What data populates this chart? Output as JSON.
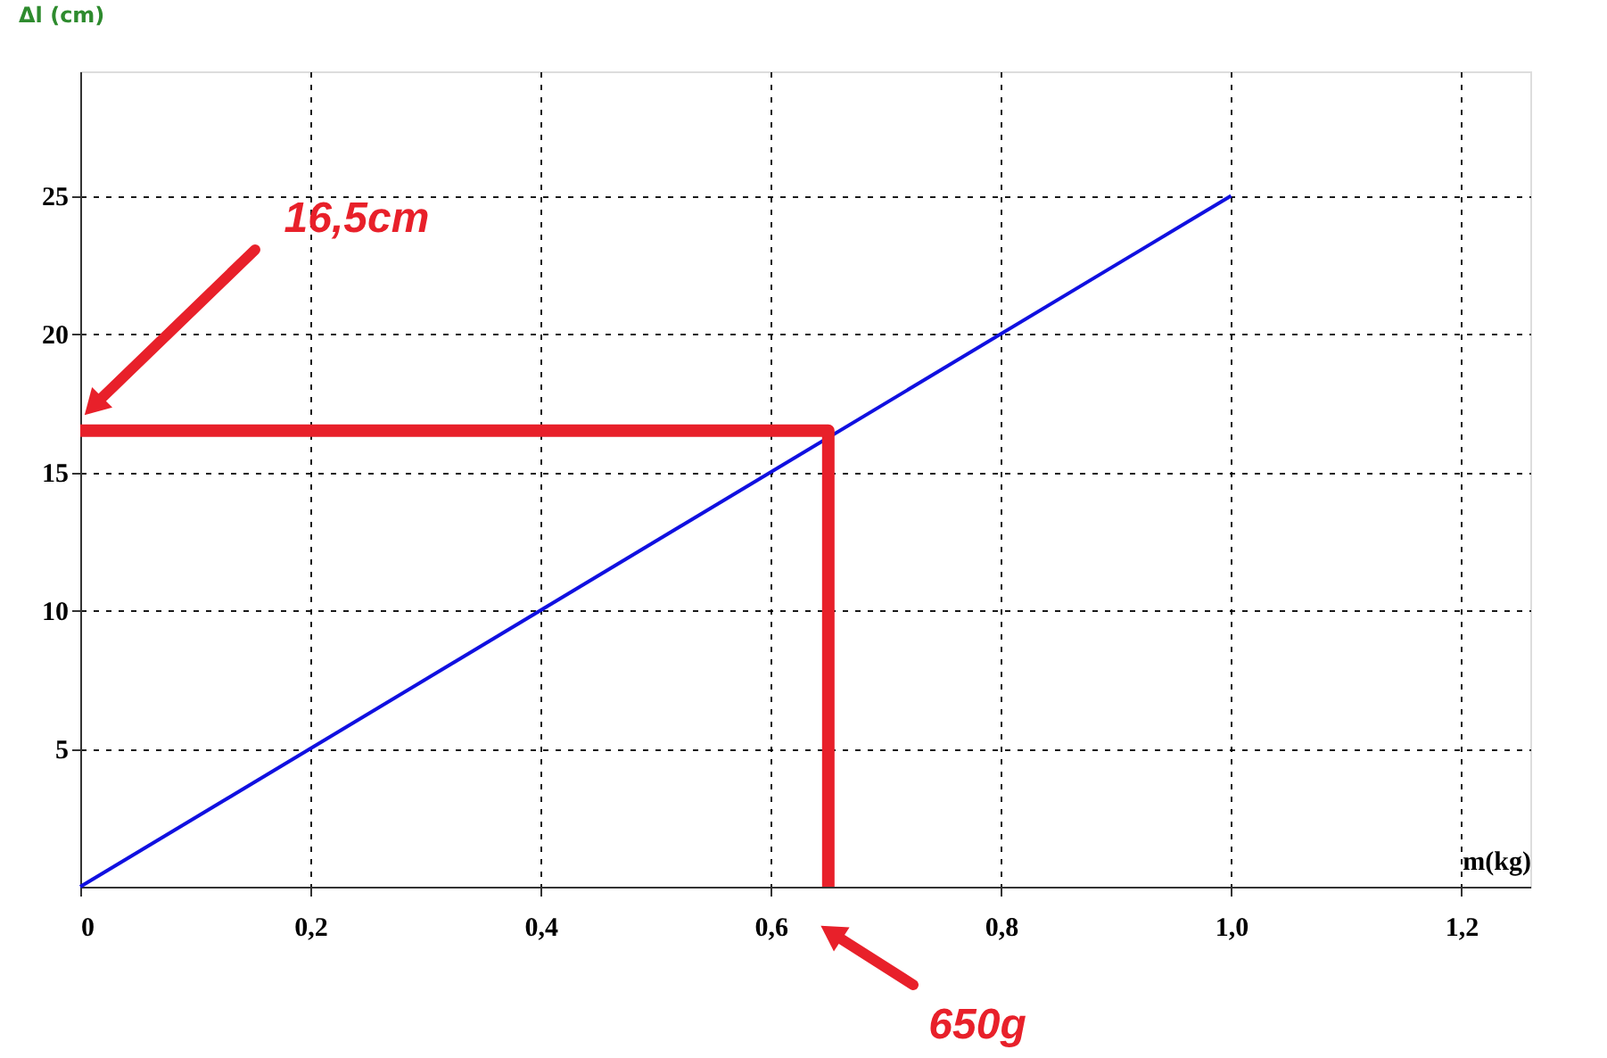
{
  "chart_data": {
    "type": "line",
    "xlabel": "m(kg)",
    "ylabel": "Δl (cm)",
    "series": [
      {
        "x": [
          0,
          1.0
        ],
        "values": [
          0,
          25
        ],
        "color": "#1010e0"
      },
      {
        "x": [
          0,
          0.65,
          0.65
        ],
        "values": [
          16.5,
          16.5,
          0
        ],
        "color": "#e8202a"
      }
    ],
    "xlim": [
      0,
      1.26
    ],
    "ylim": [
      0,
      29.5
    ],
    "xticks": [
      0,
      {
        "value": 0.2,
        "label": "0,2"
      },
      {
        "value": 0.4,
        "label": "0,4"
      },
      {
        "value": 0.6,
        "label": "0,6"
      },
      {
        "value": 0.8,
        "label": "0,8"
      },
      {
        "value": 1.0,
        "label": "1,0"
      },
      {
        "value": 1.2,
        "label": "1,2"
      }
    ],
    "yticks": [
      5,
      10,
      15,
      20,
      25
    ],
    "annotations": [
      "16,5cm",
      "650g"
    ],
    "grid": true,
    "marker": "none",
    "line_style": "solid"
  }
}
